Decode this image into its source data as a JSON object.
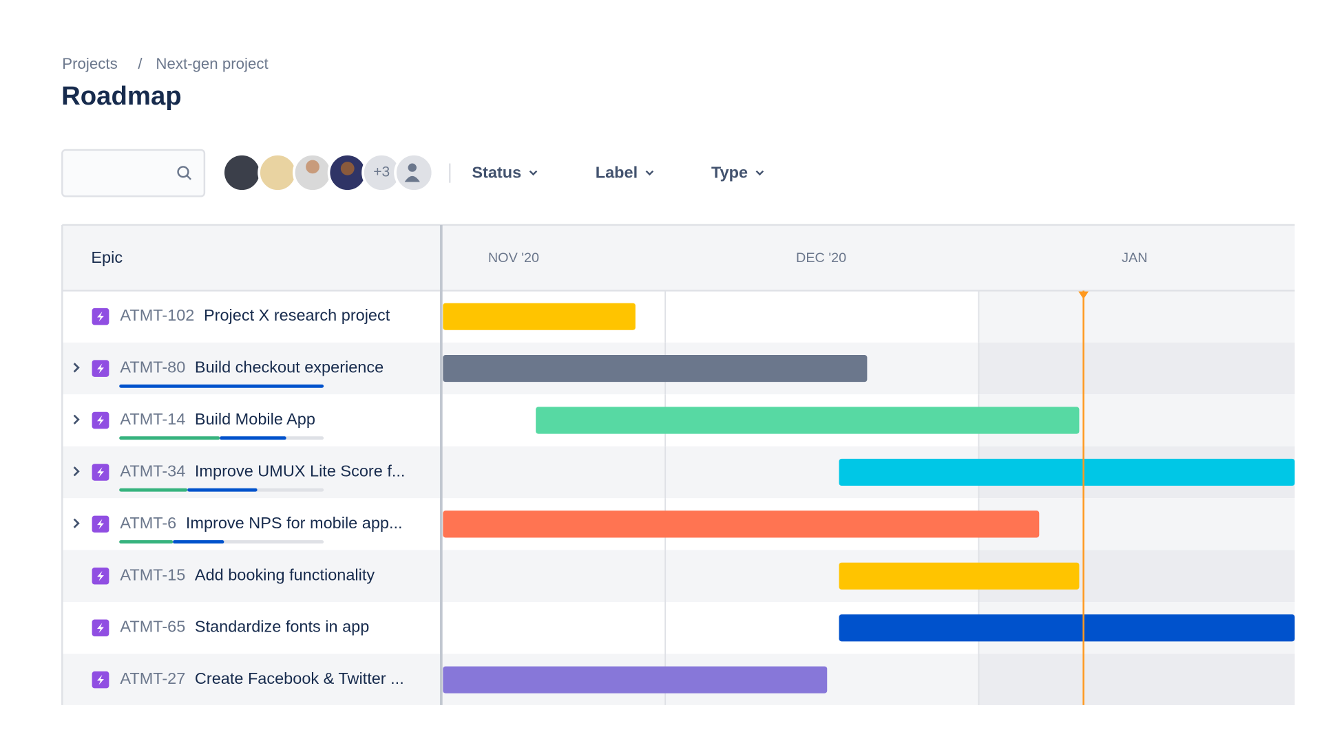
{
  "header": {
    "breadcrumb": [
      "Projects",
      "Next-gen project"
    ],
    "separator": "/",
    "title": "Roadmap"
  },
  "toolbar": {
    "avatars_more": "+3",
    "filters": [
      "Status",
      "Label",
      "Type"
    ]
  },
  "roadmap": {
    "column_header": "Epic",
    "months": [
      "NOV '20",
      "DEC '20",
      "JAN"
    ],
    "rows": [
      {
        "key": "ATMT-102",
        "name": "Project X research project"
      },
      {
        "key": "ATMT-80",
        "name": "Build checkout experience"
      },
      {
        "key": "ATMT-14",
        "name": "Build Mobile App"
      },
      {
        "key": "ATMT-34",
        "name": "Improve UMUX Lite Score f..."
      },
      {
        "key": "ATMT-6",
        "name": "Improve NPS for mobile app..."
      },
      {
        "key": "ATMT-15",
        "name": "Add booking functionality"
      },
      {
        "key": "ATMT-65",
        "name": "Standardize fonts in app"
      },
      {
        "key": "ATMT-27",
        "name": "Create Facebook & Twitter ..."
      }
    ]
  }
}
